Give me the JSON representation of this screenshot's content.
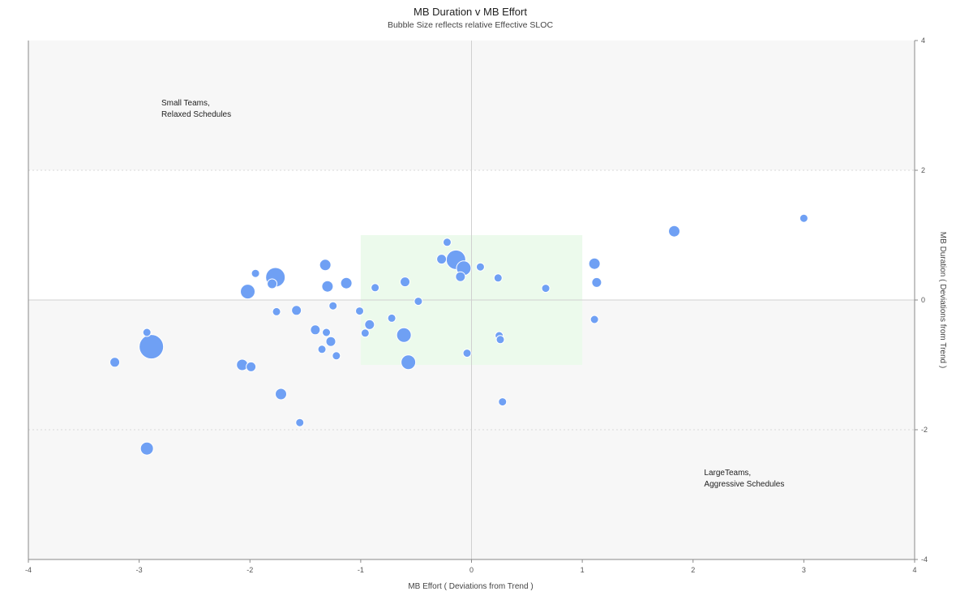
{
  "chart_data": {
    "type": "scatter",
    "title": "MB Duration v MB Effort",
    "subtitle": "Bubble Size reflects relative Effective SLOC",
    "xlabel": "MB Effort ( Deviations from Trend )",
    "ylabel": "MB Duration ( Deviations from Trend )",
    "xlim": [
      -4,
      4
    ],
    "ylim": [
      -4,
      4
    ],
    "x_ticks": [
      "-4",
      "-3",
      "-2",
      "-1",
      "0",
      "1",
      "2",
      "3",
      "4"
    ],
    "y_ticks": [
      "4",
      "2",
      "0",
      "-2",
      "-4"
    ],
    "bands": {
      "outer": [
        -2,
        2
      ],
      "center_box": {
        "x": [
          -1,
          1
        ],
        "y": [
          -1,
          1
        ]
      }
    },
    "annotations": [
      {
        "lines": [
          "Small Teams,",
          "Relaxed Schedules"
        ],
        "x": -2.8,
        "y": 3.0
      },
      {
        "lines": [
          "LargeTeams,",
          "Aggressive Schedules"
        ],
        "x": 2.1,
        "y": -2.7
      }
    ],
    "points": [
      {
        "x": -3.22,
        "y": -0.96,
        "size": 6
      },
      {
        "x": -2.93,
        "y": -0.5,
        "size": 5
      },
      {
        "x": -2.89,
        "y": -0.72,
        "size": 15
      },
      {
        "x": -2.93,
        "y": -2.29,
        "size": 8
      },
      {
        "x": -2.07,
        "y": -1.0,
        "size": 7
      },
      {
        "x": -2.02,
        "y": 0.13,
        "size": 9
      },
      {
        "x": -1.99,
        "y": -1.03,
        "size": 6
      },
      {
        "x": -1.95,
        "y": 0.41,
        "size": 5
      },
      {
        "x": -1.8,
        "y": 0.25,
        "size": 6
      },
      {
        "x": -1.77,
        "y": 0.35,
        "size": 12
      },
      {
        "x": -1.76,
        "y": -0.18,
        "size": 5
      },
      {
        "x": -1.72,
        "y": -1.45,
        "size": 7
      },
      {
        "x": -1.58,
        "y": -0.16,
        "size": 6
      },
      {
        "x": -1.55,
        "y": -1.89,
        "size": 5
      },
      {
        "x": -1.41,
        "y": -0.46,
        "size": 6
      },
      {
        "x": -1.35,
        "y": -0.76,
        "size": 5
      },
      {
        "x": -1.32,
        "y": 0.54,
        "size": 7
      },
      {
        "x": -1.31,
        "y": -0.5,
        "size": 5
      },
      {
        "x": -1.3,
        "y": 0.21,
        "size": 7
      },
      {
        "x": -1.27,
        "y": -0.64,
        "size": 6
      },
      {
        "x": -1.25,
        "y": -0.09,
        "size": 5
      },
      {
        "x": -1.22,
        "y": -0.86,
        "size": 5
      },
      {
        "x": -1.13,
        "y": 0.26,
        "size": 7
      },
      {
        "x": -1.01,
        "y": -0.17,
        "size": 5
      },
      {
        "x": -0.96,
        "y": -0.51,
        "size": 5
      },
      {
        "x": -0.92,
        "y": -0.38,
        "size": 6
      },
      {
        "x": -0.87,
        "y": 0.19,
        "size": 5
      },
      {
        "x": -0.72,
        "y": -0.28,
        "size": 5
      },
      {
        "x": -0.61,
        "y": -0.54,
        "size": 9
      },
      {
        "x": -0.6,
        "y": 0.28,
        "size": 6
      },
      {
        "x": -0.57,
        "y": -0.96,
        "size": 9
      },
      {
        "x": -0.48,
        "y": -0.02,
        "size": 5
      },
      {
        "x": -0.27,
        "y": 0.63,
        "size": 6
      },
      {
        "x": -0.22,
        "y": 0.89,
        "size": 5
      },
      {
        "x": -0.14,
        "y": 0.62,
        "size": 12
      },
      {
        "x": -0.1,
        "y": 0.36,
        "size": 6
      },
      {
        "x": -0.07,
        "y": 0.49,
        "size": 9
      },
      {
        "x": -0.04,
        "y": -0.82,
        "size": 5
      },
      {
        "x": 0.08,
        "y": 0.51,
        "size": 5
      },
      {
        "x": 0.24,
        "y": 0.34,
        "size": 5
      },
      {
        "x": 0.25,
        "y": -0.55,
        "size": 5
      },
      {
        "x": 0.26,
        "y": -0.61,
        "size": 5
      },
      {
        "x": 0.28,
        "y": -1.57,
        "size": 5
      },
      {
        "x": 0.67,
        "y": 0.18,
        "size": 5
      },
      {
        "x": 1.11,
        "y": 0.56,
        "size": 7
      },
      {
        "x": 1.11,
        "y": -0.3,
        "size": 5
      },
      {
        "x": 1.13,
        "y": 0.27,
        "size": 6
      },
      {
        "x": 1.83,
        "y": 1.06,
        "size": 7
      },
      {
        "x": 3.0,
        "y": 1.26,
        "size": 5
      }
    ],
    "colors": {
      "bubble": "#6fa0f4",
      "bubble_stroke": "#ffffff",
      "band": "#f7f7f7",
      "center_box": "#ecfaec",
      "axis": "#8a8a8a",
      "zero_line": "#d0d0d0",
      "grid": "#d8d8d8"
    }
  }
}
